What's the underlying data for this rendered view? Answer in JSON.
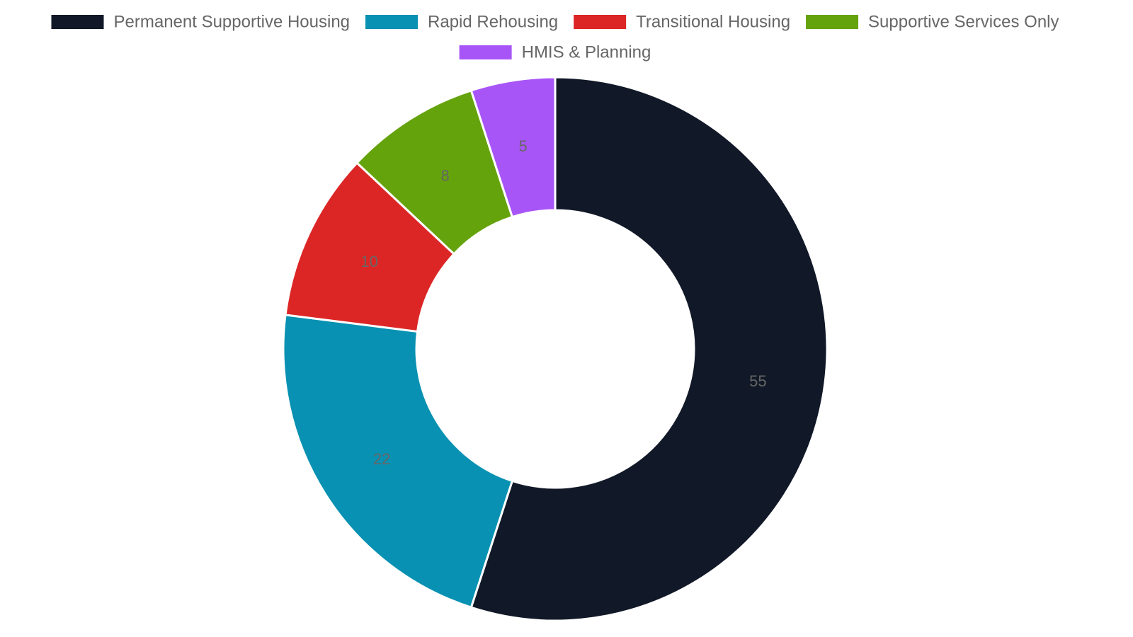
{
  "chart_data": {
    "type": "pie",
    "variant": "doughnut",
    "title": "",
    "legend_position": "top",
    "labels": [
      "Permanent Supportive Housing",
      "Rapid Rehousing",
      "Transitional Housing",
      "Supportive Services Only",
      "HMIS & Planning"
    ],
    "values": [
      55,
      22,
      10,
      8,
      5
    ],
    "value_labels": [
      "55",
      "22",
      "10",
      "8",
      "5"
    ],
    "colors": [
      "#111827",
      "#0891b2",
      "#dc2626",
      "#65a30d",
      "#a855f7"
    ],
    "border_color": "#ffffff"
  }
}
